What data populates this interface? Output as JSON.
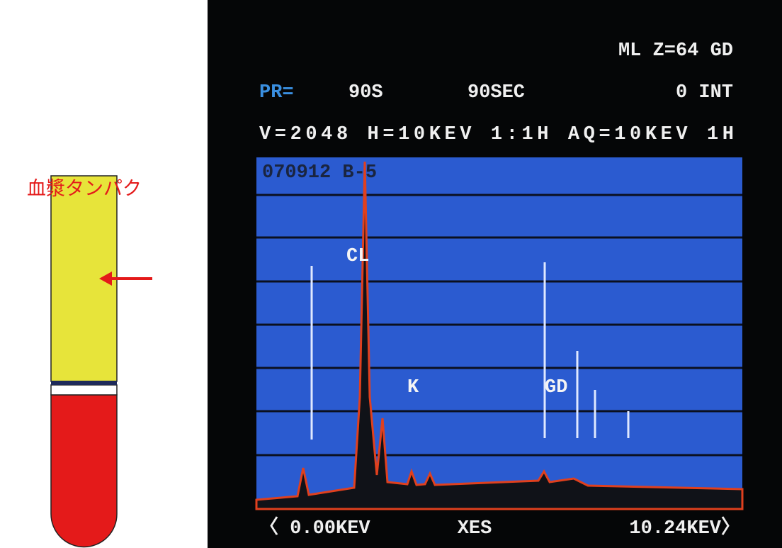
{
  "tube": {
    "label": "血漿タンパク"
  },
  "screen": {
    "header": {
      "line1": "ML  Z=64 GD",
      "pr_label": "PR=",
      "pr_value": "90S",
      "time": "90SEC",
      "int": "0 INT",
      "line3": "V=2048 H=10KEV 1:1H  AQ=10KEV 1H"
    },
    "sample_id": "070912 B-5",
    "peaks": [
      "CL",
      "K",
      "GD"
    ],
    "footer": {
      "left": "〈 0.00KEV",
      "center": "XES",
      "right": "10.24KEV〉"
    }
  }
}
